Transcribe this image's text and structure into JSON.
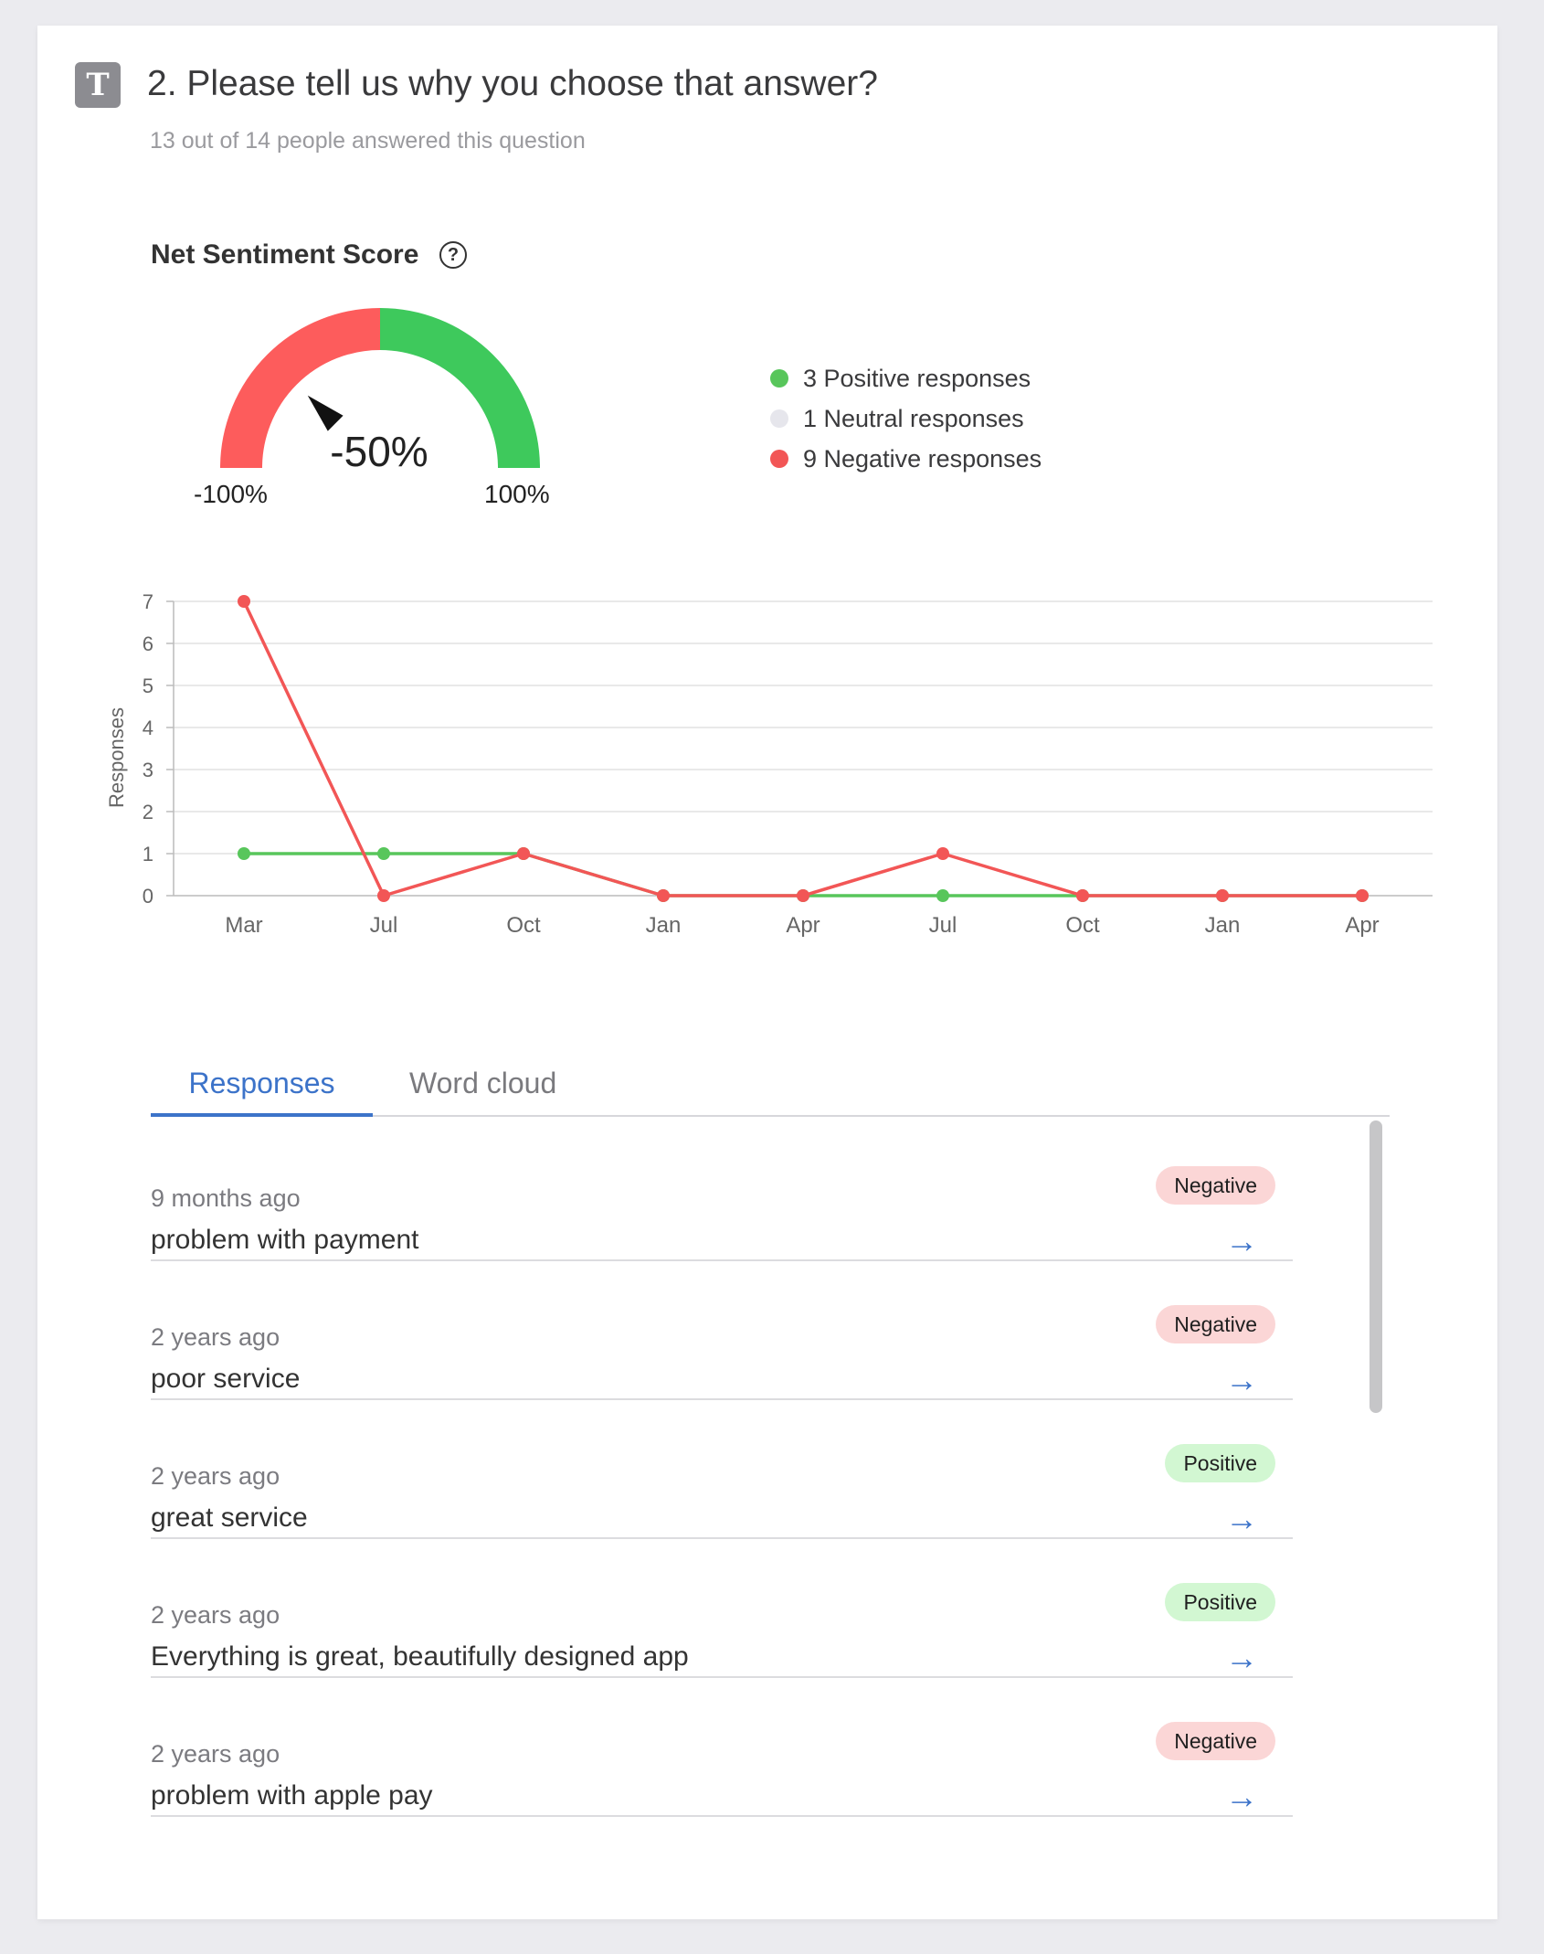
{
  "question": {
    "type_icon": "T",
    "title": "2. Please tell us why you choose that answer?",
    "subtitle": "13 out of 14 people answered this question"
  },
  "sentiment": {
    "title": "Net Sentiment Score",
    "help_icon": "?",
    "score_label": "-50%",
    "score": -0.5,
    "min_label": "-100%",
    "max_label": "100%",
    "colors": {
      "negative": "#fd5c5c",
      "positive": "#3ec95c",
      "neutral": "#e6e6ec"
    },
    "legend": [
      {
        "label": "3 Positive responses",
        "color": "#58c65b"
      },
      {
        "label": "1 Neutral responses",
        "color": "#e6e6ec"
      },
      {
        "label": "9 Negative responses",
        "color": "#f25656"
      }
    ]
  },
  "chart_data": {
    "type": "line",
    "categories": [
      "Mar",
      "Jul",
      "Oct",
      "Jan",
      "Apr",
      "Jul",
      "Oct",
      "Jan",
      "Apr"
    ],
    "ylabel": "Responses",
    "ylim": [
      0,
      7
    ],
    "yticks": [
      "0",
      "1",
      "2",
      "3",
      "4",
      "5",
      "6",
      "7"
    ],
    "grid": true,
    "series": [
      {
        "color": "#58c65b",
        "values": [
          1,
          1,
          1,
          0,
          0,
          0,
          0,
          0,
          0
        ]
      },
      {
        "color": "#f25656",
        "values": [
          7,
          0,
          1,
          0,
          0,
          1,
          0,
          0,
          0
        ]
      }
    ]
  },
  "tabs": {
    "responses": "Responses",
    "word_cloud": "Word cloud"
  },
  "responses": [
    {
      "time": "9 months ago",
      "text": "problem with payment",
      "sentiment": "Negative",
      "arrow": "→"
    },
    {
      "time": "2 years ago",
      "text": "poor service",
      "sentiment": "Negative",
      "arrow": "→"
    },
    {
      "time": "2 years ago",
      "text": "great service",
      "sentiment": "Positive",
      "arrow": "→"
    },
    {
      "time": "2 years ago",
      "text": "Everything is great, beautifully designed app",
      "sentiment": "Positive",
      "arrow": "→"
    },
    {
      "time": "2 years ago",
      "text": "problem with apple pay",
      "sentiment": "Negative",
      "arrow": "→"
    }
  ]
}
